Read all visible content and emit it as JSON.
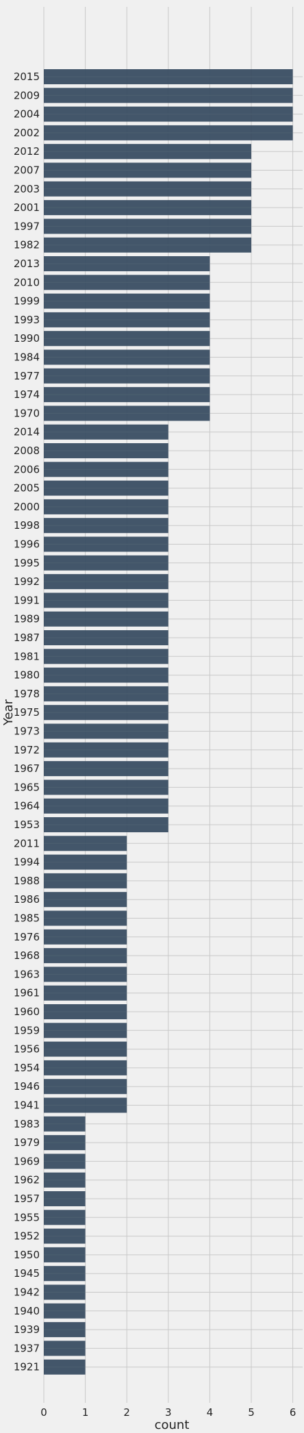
{
  "chart_data": {
    "type": "bar",
    "orientation": "horizontal",
    "xlabel": "count",
    "ylabel": "Year",
    "xlim": [
      0,
      6.3
    ],
    "xticks": [
      "0",
      "1",
      "2",
      "3",
      "4",
      "5",
      "6"
    ],
    "grid": true,
    "bar_color": "#34495e",
    "background": "#f0f0f0",
    "categories": [
      "2015",
      "2009",
      "2004",
      "2002",
      "2012",
      "2007",
      "2003",
      "2001",
      "1997",
      "1982",
      "2013",
      "2010",
      "1999",
      "1993",
      "1990",
      "1984",
      "1977",
      "1974",
      "1970",
      "2014",
      "2008",
      "2006",
      "2005",
      "2000",
      "1998",
      "1996",
      "1995",
      "1992",
      "1991",
      "1989",
      "1987",
      "1981",
      "1980",
      "1978",
      "1975",
      "1973",
      "1972",
      "1967",
      "1965",
      "1964",
      "1953",
      "2011",
      "1994",
      "1988",
      "1986",
      "1985",
      "1976",
      "1968",
      "1963",
      "1961",
      "1960",
      "1959",
      "1956",
      "1954",
      "1946",
      "1941",
      "1983",
      "1979",
      "1969",
      "1962",
      "1957",
      "1955",
      "1952",
      "1950",
      "1945",
      "1942",
      "1940",
      "1939",
      "1937",
      "1921"
    ],
    "values": [
      6,
      6,
      6,
      6,
      5,
      5,
      5,
      5,
      5,
      5,
      4,
      4,
      4,
      4,
      4,
      4,
      4,
      4,
      4,
      3,
      3,
      3,
      3,
      3,
      3,
      3,
      3,
      3,
      3,
      3,
      3,
      3,
      3,
      3,
      3,
      3,
      3,
      3,
      3,
      3,
      3,
      2,
      2,
      2,
      2,
      2,
      2,
      2,
      2,
      2,
      2,
      2,
      2,
      2,
      2,
      2,
      1,
      1,
      1,
      1,
      1,
      1,
      1,
      1,
      1,
      1,
      1,
      1,
      1,
      1
    ]
  }
}
